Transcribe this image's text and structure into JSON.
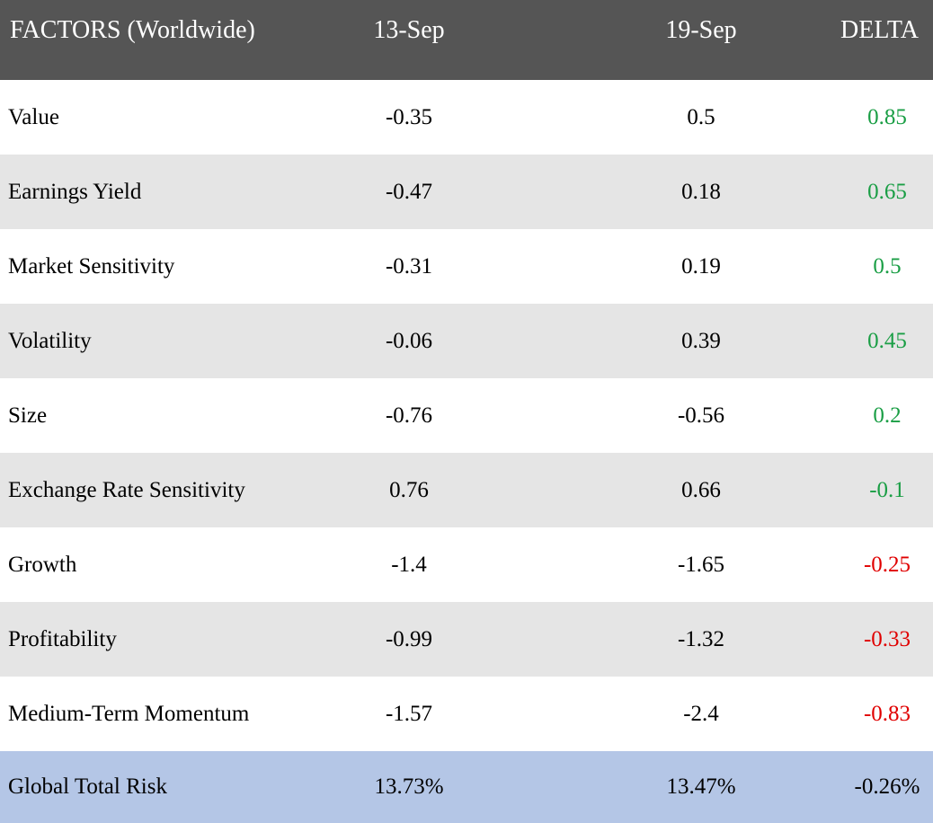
{
  "header": {
    "factor": "FACTORS (Worldwide)",
    "date1": "13-Sep",
    "date2": "19-Sep",
    "delta": "DELTA"
  },
  "rows": [
    {
      "factor": "Value",
      "v1": "-0.35",
      "v2": "0.5",
      "delta": "0.85",
      "delta_color": "#1a9e45"
    },
    {
      "factor": "Earnings Yield",
      "v1": "-0.47",
      "v2": "0.18",
      "delta": "0.65",
      "delta_color": "#1a9e45"
    },
    {
      "factor": "Market Sensitivity",
      "v1": "-0.31",
      "v2": "0.19",
      "delta": "0.5",
      "delta_color": "#1a9e45"
    },
    {
      "factor": "Volatility",
      "v1": "-0.06",
      "v2": "0.39",
      "delta": "0.45",
      "delta_color": "#1a9e45"
    },
    {
      "factor": "Size",
      "v1": "-0.76",
      "v2": "-0.56",
      "delta": "0.2",
      "delta_color": "#1a9e45"
    },
    {
      "factor": "Exchange Rate Sensitivity",
      "v1": "0.76",
      "v2": "0.66",
      "delta": "-0.1",
      "delta_color": "#1a9e45"
    },
    {
      "factor": "Growth",
      "v1": "-1.4",
      "v2": "-1.65",
      "delta": "-0.25",
      "delta_color": "#e00000"
    },
    {
      "factor": "Profitability",
      "v1": "-0.99",
      "v2": "-1.32",
      "delta": "-0.33",
      "delta_color": "#e00000"
    },
    {
      "factor": "Medium-Term Momentum",
      "v1": "-1.57",
      "v2": "-2.4",
      "delta": "-0.83",
      "delta_color": "#e00000"
    }
  ],
  "total": {
    "factor": "Global Total Risk",
    "v1": "13.73%",
    "v2": "13.47%",
    "delta": "-0.26%"
  },
  "colors": {
    "header_bg": "#555555",
    "alt_row_bg": "#e5e5e5",
    "total_row_bg": "#b4c6e6",
    "positive": "#1a9e45",
    "negative": "#e00000"
  }
}
